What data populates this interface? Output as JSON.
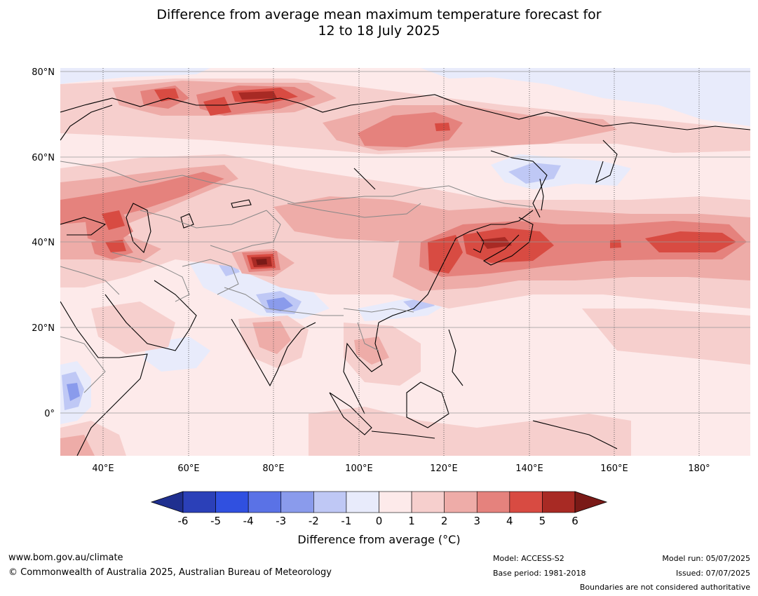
{
  "title_line1": "Difference from average mean maximum temperature forecast for",
  "title_line2": "12 to 18 July 2025",
  "lat_labels": [
    "80°N",
    "60°N",
    "40°N",
    "20°N",
    "0°"
  ],
  "lon_labels": [
    "40°E",
    "60°E",
    "80°E",
    "100°E",
    "120°E",
    "140°E",
    "160°E",
    "180°"
  ],
  "colorbar": {
    "ticks": [
      "-6",
      "-5",
      "-4",
      "-3",
      "-2",
      "-1",
      "0",
      "1",
      "2",
      "3",
      "4",
      "5",
      "6"
    ],
    "colors": [
      "#1f2f8f",
      "#2b40b8",
      "#3050e0",
      "#5a72e6",
      "#8a9bec",
      "#bfc8f5",
      "#e8ebfb",
      "#fdeaea",
      "#f6cfcd",
      "#eeaca8",
      "#e5827d",
      "#d84b42",
      "#a82a24",
      "#7a1a17"
    ],
    "label": "Difference from average (°C)"
  },
  "anomaly_colors": {
    "minus1": "#e8ebfb",
    "minus2": "#bfc8f5",
    "minus3": "#8a9bec",
    "plus0": "#fdeaea",
    "plus1": "#f6cfcd",
    "plus2": "#eeaca8",
    "plus3": "#e5827d",
    "plus4": "#d84b42",
    "plus5": "#a82a24",
    "plus6": "#7a1a17"
  },
  "footer": {
    "website": "www.bom.gov.au/climate",
    "copyright": "© Commonwealth of Australia 2025, Australian Bureau of Meteorology",
    "model": "Model: ACCESS-S2",
    "base_period": "Base period: 1981-2018",
    "model_run": "Model run: 05/07/2025",
    "issued": "Issued: 07/07/2025",
    "boundaries_note": "Boundaries are not considered authoritative"
  }
}
